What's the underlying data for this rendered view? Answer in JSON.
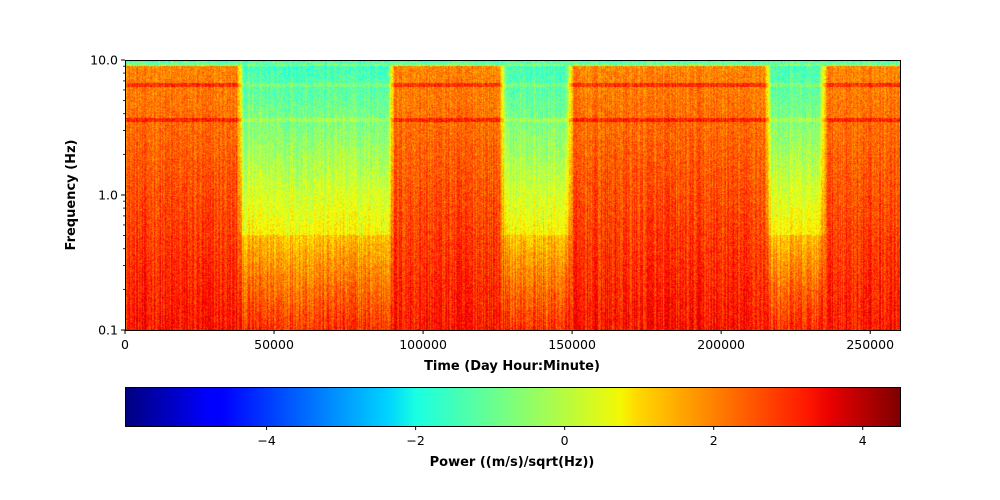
{
  "chart_data": {
    "type": "heatmap",
    "title": "",
    "xlabel": "Time (Day Hour:Minute)",
    "ylabel": "Frequency (Hz)",
    "colorbar_label": "Power ((m/s)/sqrt(Hz))",
    "colormap": "jet",
    "x_range": [
      0,
      260000
    ],
    "y_range": [
      0.1,
      10.0
    ],
    "y_scale": "log",
    "color_range": [
      -5.9,
      4.5
    ],
    "x_ticks": [
      0,
      50000,
      100000,
      150000,
      200000,
      250000
    ],
    "x_tick_labels": [
      "0",
      "50000",
      "100000",
      "150000",
      "200000",
      "250000"
    ],
    "y_ticks": [
      0.1,
      1.0,
      10.0
    ],
    "y_tick_labels": [
      "0.1",
      "1.0",
      "10.0"
    ],
    "colorbar_ticks": [
      -4,
      -2,
      0,
      2,
      4
    ],
    "colorbar_tick_labels": [
      "−4",
      "−2",
      "0",
      "2",
      "4"
    ],
    "quiet_periods": [
      [
        40000,
        88000
      ],
      [
        128000,
        148000
      ],
      [
        217000,
        233000
      ]
    ],
    "spectral_lines_hz": [
      3.6,
      6.5
    ],
    "approx_power_levels": {
      "active_low_freq": 3.0,
      "active_high_freq": 1.8,
      "quiet_mid_freq": -1.0,
      "top_edge": -1.5
    }
  }
}
